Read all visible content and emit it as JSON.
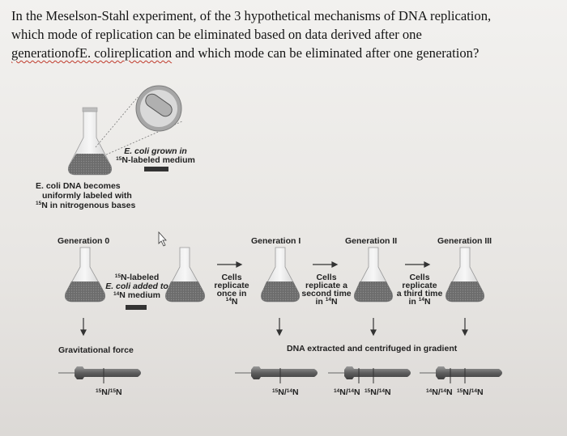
{
  "question": {
    "line1": "In the Meselson-Stahl experiment, of the 3 hypothetical mechanisms of DNA replication,",
    "line2": "which mode of replication can be eliminated based on data derived after one",
    "line3_misspelled": "generationofE. colireplication",
    "line3_rest": " and which mode can be eliminated after one generation?"
  },
  "figure": {
    "grown_line1": "E. coli grown in",
    "grown_sup": "15",
    "grown_line2": "N-labeled medium",
    "dna_line1": "E. coli DNA becomes",
    "dna_line2": "uniformly labeled with",
    "dna_sup": "15",
    "dna_line3": "N in nitrogenous bases",
    "gen0": "Generation 0",
    "gen1": "Generation I",
    "gen2": "Generation II",
    "gen3": "Generation III",
    "added_sup1": "15",
    "added_line1": "N-labeled",
    "added_line2": "E. coli added to",
    "added_sup2": "14",
    "added_line3": "N medium",
    "rep1_l1": "Cells",
    "rep1_l2": "replicate",
    "rep1_l3": "once in",
    "rep1_sup": "14",
    "rep1_l4": "N",
    "rep2_l1": "Cells",
    "rep2_l2": "replicate a",
    "rep2_l3": "second time",
    "rep2_pre": "in ",
    "rep2_sup": "14",
    "rep2_l4": "N",
    "rep3_l1": "Cells",
    "rep3_l2": "replicate",
    "rep3_l3": "a third time",
    "rep3_pre": "in ",
    "rep3_sup": "14",
    "rep3_l4": "N",
    "gravity": "Gravitational force",
    "extracted": "DNA extracted and centrifuged in gradient",
    "band0": {
      "s1": "15",
      "a": "N/",
      "s2": "15",
      "b": "N"
    },
    "band1": {
      "s1": "15",
      "a": "N/",
      "s2": "14",
      "b": "N"
    },
    "band2a": {
      "s1": "14",
      "a": "N/",
      "s2": "14",
      "b": "N"
    },
    "band2b": {
      "s1": "15",
      "a": "N/",
      "s2": "14",
      "b": "N"
    },
    "band3a": {
      "s1": "14",
      "a": "N/",
      "s2": "14",
      "b": "N"
    },
    "band3b": {
      "s1": "15",
      "a": "N/",
      "s2": "14",
      "b": "N"
    }
  }
}
